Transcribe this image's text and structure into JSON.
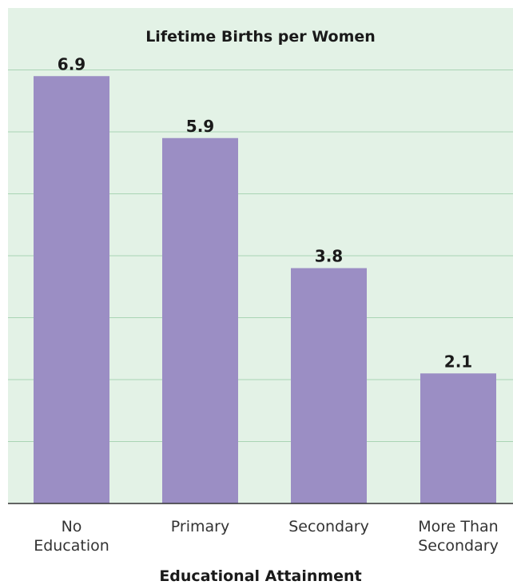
{
  "chart_data": {
    "type": "bar",
    "title": "Lifetime Births per Women",
    "xlabel": "Educational Attainment",
    "ylabel": "",
    "categories": [
      [
        "No",
        "Education"
      ],
      [
        "Primary"
      ],
      [
        "Secondary"
      ],
      [
        "More Than",
        "Secondary"
      ]
    ],
    "values": [
      6.9,
      5.9,
      3.8,
      2.1
    ],
    "value_labels": [
      "6.9",
      "5.9",
      "3.8",
      "2.1"
    ],
    "ylim": [
      0,
      8
    ],
    "grid": true,
    "colors": {
      "plot_background": "#e3f2e6",
      "gridline": "#a9d4b4",
      "bar": "#9b8ec4",
      "axis": "#333333"
    }
  }
}
